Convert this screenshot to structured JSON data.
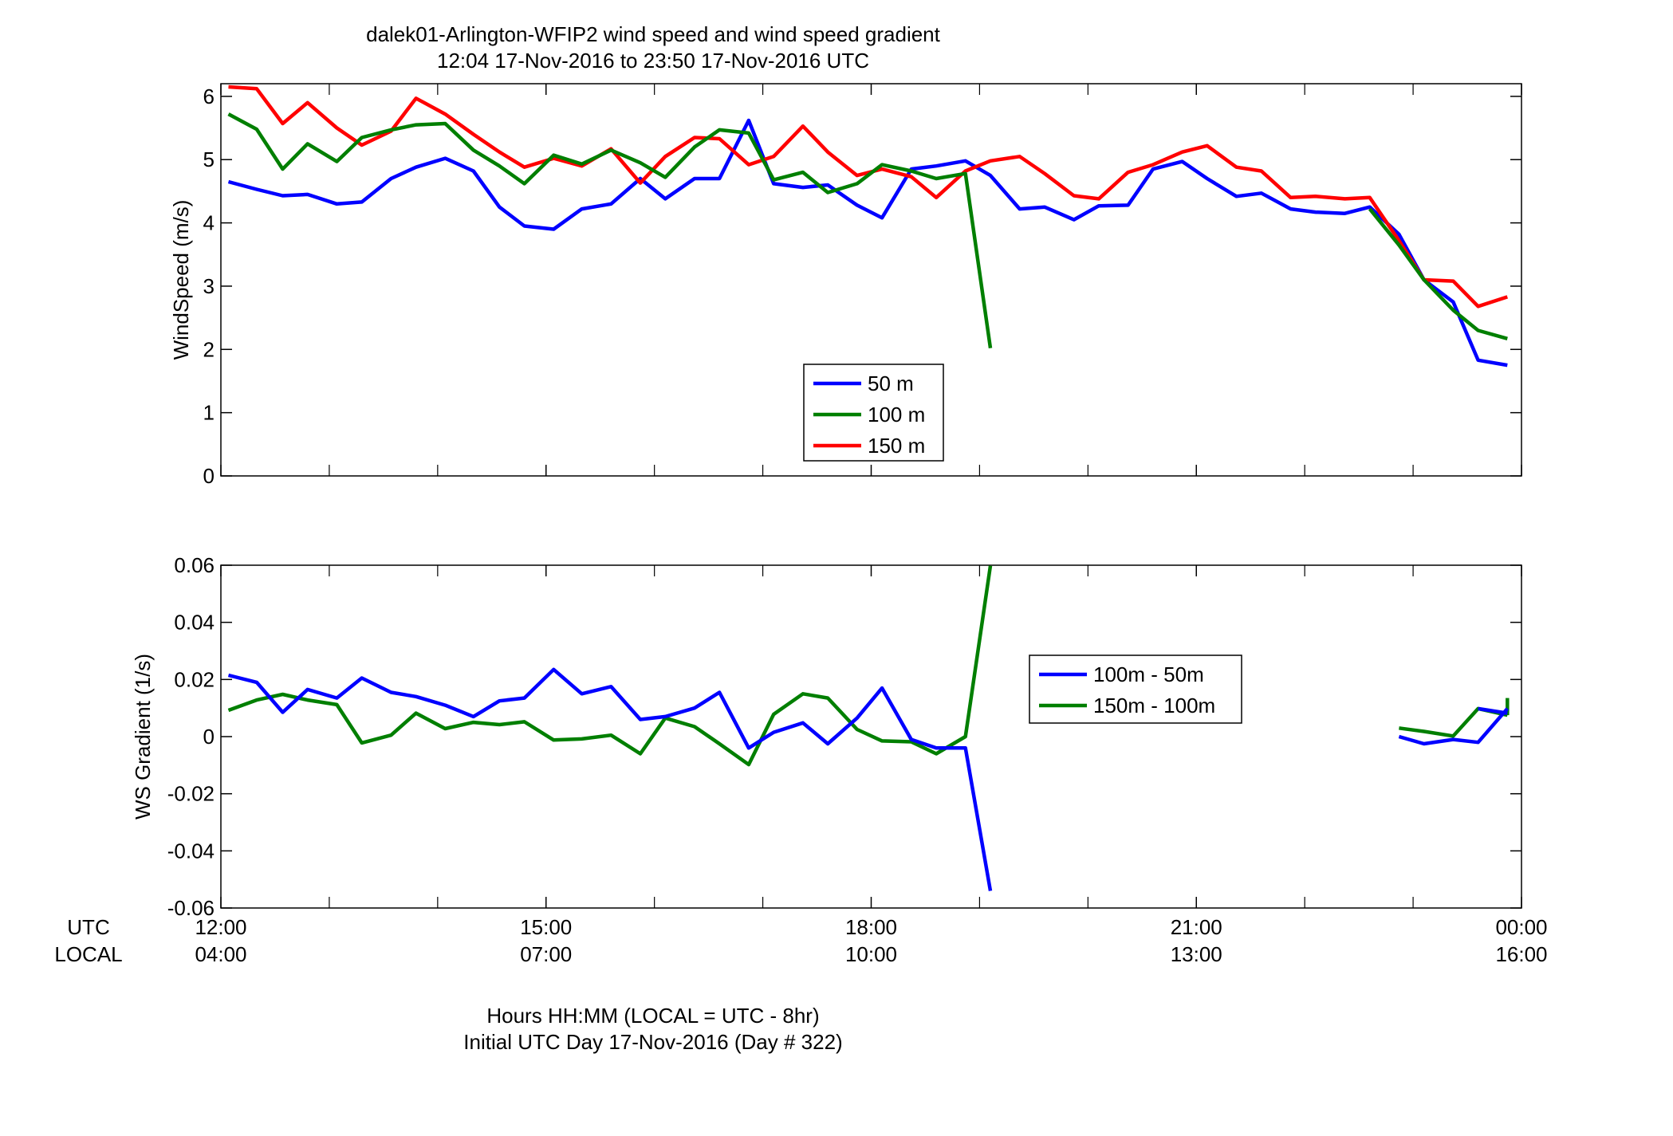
{
  "title_line1": "dalek01-Arlington-WFIP2  wind speed and wind speed gradient",
  "title_line2": "12:04 17-Nov-2016 to 23:50 17-Nov-2016  UTC",
  "xlabel_line1": "Hours HH:MM  (LOCAL = UTC - 8hr)",
  "xlabel_line2": "Initial UTC Day 17-Nov-2016 (Day # 322)",
  "row_label_utc": "UTC",
  "row_label_local": "LOCAL",
  "chart_data": [
    {
      "type": "line",
      "title": "dalek01-Arlington-WFIP2  wind speed and wind speed gradient",
      "ylabel": "WindSpeed (m/s)",
      "xlim": [
        12,
        24
      ],
      "ylim": [
        0,
        6.2
      ],
      "yticks": [
        0,
        1,
        2,
        3,
        4,
        5,
        6
      ],
      "ytick_labels": [
        "0",
        "1",
        "2",
        "3",
        "4",
        "5",
        "6"
      ],
      "xticks": [
        12,
        15,
        18,
        21,
        24
      ],
      "xtick_labels_utc": [
        "12:00",
        "15:00",
        "18:00",
        "21:00",
        "00:00"
      ],
      "xtick_labels_local": [
        "04:00",
        "07:00",
        "10:00",
        "13:00",
        "16:00"
      ],
      "legend_placement": "center",
      "series": [
        {
          "name": "50 m",
          "color": "#0000ff",
          "x": [
            12.07,
            12.33,
            12.57,
            12.8,
            13.07,
            13.3,
            13.57,
            13.8,
            14.07,
            14.33,
            14.57,
            14.8,
            15.07,
            15.33,
            15.6,
            15.87,
            16.1,
            16.37,
            16.6,
            16.87,
            17.1,
            17.37,
            17.6,
            17.87,
            18.1,
            18.37,
            18.6,
            18.87,
            19.1
          ],
          "y": [
            4.65,
            4.53,
            4.43,
            4.45,
            4.3,
            4.33,
            4.7,
            4.88,
            5.02,
            4.82,
            4.25,
            3.95,
            3.9,
            4.22,
            4.3,
            4.7,
            4.38,
            4.7,
            4.7,
            5.62,
            4.62,
            4.56,
            4.6,
            4.28,
            4.08,
            4.85,
            4.9,
            4.98,
            4.75
          ]
        },
        {
          "name": "100 m",
          "color": "#007f00",
          "x": [
            12.07,
            12.33,
            12.57,
            12.8,
            13.07,
            13.3,
            13.57,
            13.8,
            14.07,
            14.33,
            14.57,
            14.8,
            15.07,
            15.33,
            15.6,
            15.87,
            16.1,
            16.37,
            16.6,
            16.87,
            17.1,
            17.37,
            17.6,
            17.87,
            18.1,
            18.37,
            18.6,
            18.87,
            19.1
          ],
          "y": [
            5.72,
            5.48,
            4.85,
            5.25,
            4.97,
            5.35,
            5.47,
            5.55,
            5.57,
            5.15,
            4.9,
            4.62,
            5.07,
            4.93,
            5.15,
            4.95,
            4.72,
            5.2,
            5.47,
            5.42,
            4.68,
            4.8,
            4.48,
            4.62,
            4.92,
            4.82,
            4.7,
            4.78,
            2.02
          ]
        },
        {
          "name": "150 m",
          "color": "#ff0000",
          "x": [
            12.07,
            12.33,
            12.57,
            12.8,
            13.07,
            13.3,
            13.57,
            13.8,
            14.07,
            14.33,
            14.57,
            14.8,
            15.07,
            15.33,
            15.6,
            15.87,
            16.1,
            16.37,
            16.6,
            16.87,
            17.1,
            17.37,
            17.6,
            17.87,
            18.1,
            18.37,
            18.6,
            18.87,
            19.1
          ],
          "y": [
            6.15,
            6.12,
            5.57,
            5.9,
            5.5,
            5.23,
            5.45,
            5.97,
            5.72,
            5.4,
            5.12,
            4.88,
            5.02,
            4.9,
            5.17,
            4.63,
            5.05,
            5.35,
            5.33,
            4.92,
            5.05,
            5.53,
            5.12,
            4.75,
            4.85,
            4.73,
            4.4,
            4.82,
            4.98
          ],
          "segments": [
            {
              "x": [
                19.1,
                19.37,
                19.6,
                19.87,
                20.1,
                20.37,
                20.6,
                20.87,
                21.1,
                21.37,
                21.6,
                21.87,
                22.1,
                22.37,
                22.6,
                22.87,
                23.1,
                23.37,
                23.6,
                23.87
              ],
              "y": [
                4.98,
                5.05,
                4.78,
                4.43,
                4.38,
                4.8,
                4.92,
                5.12,
                5.22,
                4.88,
                4.82,
                4.4,
                4.42,
                4.38,
                4.4,
                3.72,
                3.1,
                3.08,
                2.68,
                2.83
              ]
            }
          ]
        }
      ],
      "extra_50m_x": [
        19.1,
        19.37,
        19.6,
        19.87,
        20.1,
        20.37,
        20.6,
        20.87,
        21.1,
        21.37,
        21.6,
        21.87,
        22.1,
        22.37,
        22.6,
        22.87,
        23.1,
        23.37,
        23.6,
        23.87
      ],
      "extra_50m_y": [
        4.75,
        4.22,
        4.25,
        4.05,
        4.27,
        4.28,
        4.85,
        4.97,
        4.7,
        4.42,
        4.47,
        4.22,
        4.17,
        4.15,
        4.25,
        3.82,
        3.1,
        2.75,
        1.83,
        1.75
      ],
      "extra_100m_x": [
        22.6,
        22.87,
        23.1,
        23.37,
        23.6,
        23.87
      ],
      "extra_100m_y": [
        4.22,
        3.65,
        3.1,
        2.62,
        2.3,
        2.17
      ]
    },
    {
      "type": "line",
      "ylabel": "WS Gradient (1/s)",
      "xlim": [
        12,
        24
      ],
      "ylim": [
        -0.06,
        0.06
      ],
      "yticks": [
        -0.06,
        -0.04,
        -0.02,
        0,
        0.02,
        0.04,
        0.06
      ],
      "ytick_labels": [
        "-0.06",
        "-0.04",
        "-0.02",
        "0",
        "0.02",
        "0.04",
        "0.06"
      ],
      "legend_placement": "center-right",
      "series": [
        {
          "name": "100m - 50m",
          "color": "#0000ff",
          "x": [
            12.07,
            12.33,
            12.57,
            12.8,
            13.07,
            13.3,
            13.57,
            13.8,
            14.07,
            14.33,
            14.57,
            14.8,
            15.07,
            15.33,
            15.6,
            15.87,
            16.1,
            16.37,
            16.6,
            16.87,
            17.1,
            17.37,
            17.6,
            17.87,
            18.1,
            18.37,
            18.6,
            18.87,
            19.1
          ],
          "y": [
            0.0215,
            0.019,
            0.0085,
            0.0165,
            0.0135,
            0.0205,
            0.0155,
            0.014,
            0.011,
            0.007,
            0.0125,
            0.0135,
            0.0235,
            0.015,
            0.0175,
            0.006,
            0.007,
            0.01,
            0.0155,
            -0.004,
            0.0015,
            0.0048,
            -0.0025,
            0.0065,
            0.017,
            -0.001,
            -0.004,
            -0.004,
            -0.054
          ],
          "x2": [
            22.87,
            23.1,
            23.37,
            23.6,
            23.87
          ],
          "y2": [
            0.0,
            -0.0025,
            -0.001,
            -0.002,
            0.0098
          ],
          "x2_tail": [
            23.6,
            23.87
          ],
          "y2_tail": [
            0.0098,
            0.0082
          ]
        },
        {
          "name": "150m - 100m",
          "color": "#007f00",
          "x": [
            12.07,
            12.33,
            12.57,
            12.8,
            13.07,
            13.3,
            13.57,
            13.8,
            14.07,
            14.33,
            14.57,
            14.8,
            15.07,
            15.33,
            15.6,
            15.87,
            16.1,
            16.37,
            16.6,
            16.87,
            17.1,
            17.37,
            17.6,
            17.87,
            18.1,
            18.37,
            18.6,
            18.87,
            19.1
          ],
          "y": [
            0.0092,
            0.0128,
            0.0148,
            0.0128,
            0.0112,
            -0.0022,
            0.0005,
            0.0082,
            0.0028,
            0.005,
            0.0042,
            0.0052,
            -0.0012,
            -0.0008,
            0.0005,
            -0.006,
            0.0065,
            0.0035,
            -0.0025,
            -0.0098,
            0.0078,
            0.015,
            0.0135,
            0.0025,
            -0.0015,
            -0.0018,
            -0.006,
            0.0,
            0.0598
          ],
          "x2": [
            22.87,
            23.1,
            23.37,
            23.6,
            23.87
          ],
          "y2": [
            0.003,
            0.0018,
            0.0002,
            0.0098,
            0.0075
          ],
          "x2_tail": [
            23.87
          ],
          "y2_tail": [
            0.0135
          ]
        }
      ]
    }
  ]
}
